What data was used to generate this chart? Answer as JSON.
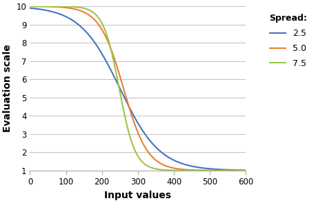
{
  "title": "",
  "xlabel": "Input values",
  "ylabel": "Evaluation scale",
  "xlim": [
    0,
    600
  ],
  "ylim": [
    1,
    10
  ],
  "xticks": [
    0,
    100,
    200,
    300,
    400,
    500,
    600
  ],
  "yticks": [
    1,
    2,
    3,
    4,
    5,
    6,
    7,
    8,
    9,
    10
  ],
  "series": [
    {
      "label": "2.5",
      "spread": 2.5,
      "k": 0.018,
      "inflection": 250,
      "color": "#4472C4"
    },
    {
      "label": "5.0",
      "spread": 5.0,
      "k": 0.03,
      "inflection": 260,
      "color": "#ED7D31"
    },
    {
      "label": "7.5",
      "spread": 7.5,
      "k": 0.045,
      "inflection": 248,
      "color": "#9DC346"
    }
  ],
  "legend_title": "Spread:",
  "ymin": 1,
  "ymax": 10,
  "background_color": "#FFFFFF",
  "grid_color": "#C0C0C0"
}
